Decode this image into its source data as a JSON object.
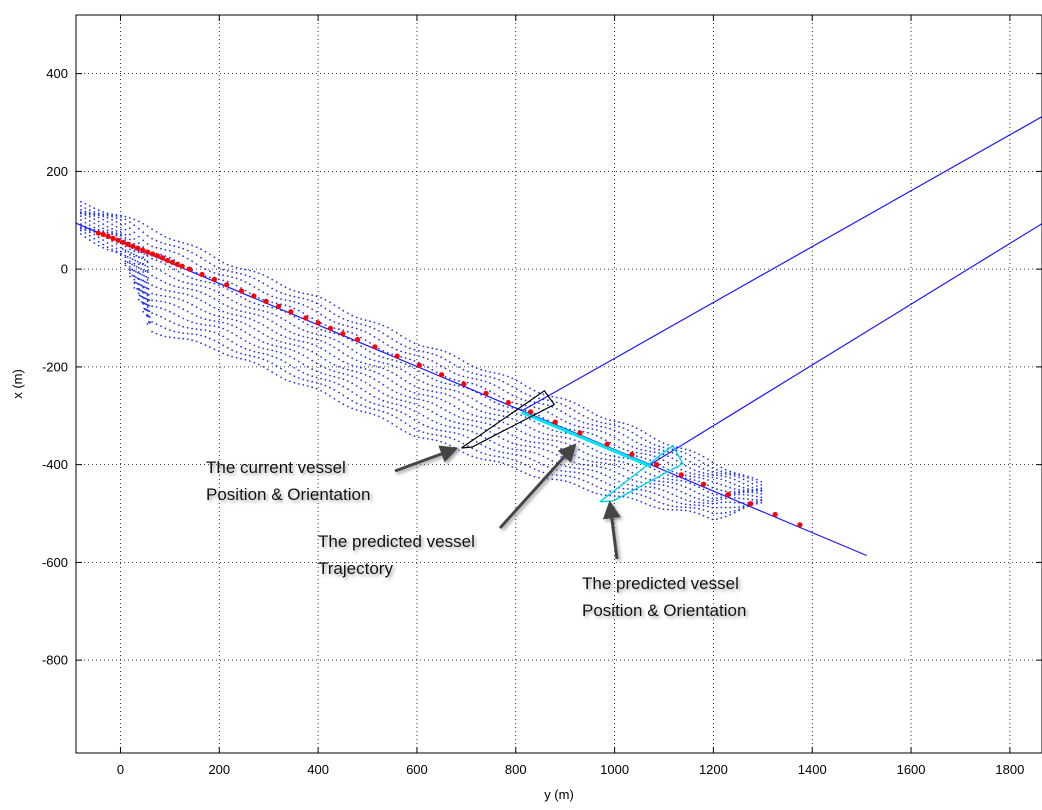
{
  "chart_data": {
    "type": "scatter",
    "title": "",
    "xlabel": "y (m)",
    "ylabel": "x (m)",
    "xlim": [
      -90,
      1865
    ],
    "ylim": [
      -990,
      520
    ],
    "xticks": [
      0,
      200,
      400,
      600,
      800,
      1000,
      1200,
      1400,
      1600,
      1800
    ],
    "yticks": [
      400,
      200,
      0,
      -200,
      -400,
      -600,
      -800
    ],
    "grid": true,
    "colors": {
      "trajectory": "#1a1aff",
      "cloud": "#2233ee",
      "markers": "#ff0000",
      "predicted": "#00e5ee",
      "current_vessel": "#000000",
      "predicted_vessel": "#00d6e0",
      "arrow": "#444444"
    },
    "series": [
      {
        "kind": "line",
        "x": [
          -90,
          1510
        ],
        "y": [
          94,
          -586
        ]
      },
      {
        "kind": "line",
        "x": [
          812,
          1865
        ],
        "y": [
          -290,
          312
        ]
      },
      {
        "kind": "line",
        "x": [
          1072,
          1865
        ],
        "y": [
          -400,
          93
        ]
      },
      {
        "kind": "markers",
        "x": [
          -45,
          -35,
          -25,
          -15,
          -5,
          5,
          15,
          25,
          35,
          45,
          55,
          65,
          75,
          85,
          95,
          105,
          115,
          125,
          140,
          165,
          190,
          215,
          245,
          270,
          295,
          320,
          345,
          375,
          400,
          425,
          450,
          480,
          515,
          560,
          605,
          650,
          695,
          740,
          785,
          830,
          880,
          930,
          985,
          1035,
          1085,
          1135,
          1180,
          1230,
          1275,
          1325,
          1375
        ],
        "y": [
          74,
          71,
          67,
          63,
          59,
          55,
          51,
          47,
          43,
          39,
          35,
          31,
          27,
          23,
          18,
          14,
          10,
          6,
          0,
          -11,
          -21,
          -32,
          -45,
          -55,
          -66,
          -76,
          -87,
          -100,
          -110,
          -121,
          -132,
          -144,
          -159,
          -178,
          -197,
          -216,
          -235,
          -254,
          -273,
          -292,
          -313,
          -335,
          -358,
          -379,
          -400,
          -421,
          -440,
          -461,
          -480,
          -502,
          -523
        ]
      },
      {
        "kind": "predicted_trajectory",
        "x": [
          812,
          1072
        ],
        "y": [
          -293,
          -403
        ]
      }
    ],
    "cloud_bounds": {
      "top": {
        "x": [
          -80,
          0,
          80,
          200,
          400,
          600,
          800,
          1000,
          1200,
          1300
        ],
        "y": [
          135,
          110,
          75,
          20,
          -60,
          -150,
          -230,
          -310,
          -395,
          -440
        ]
      },
      "bottom": {
        "x": [
          -80,
          0,
          60,
          200,
          400,
          600,
          800,
          1000,
          1200,
          1300
        ],
        "y": [
          70,
          30,
          -125,
          -165,
          -250,
          -340,
          -410,
          -465,
          -510,
          -480
        ]
      }
    },
    "vessels": {
      "current": {
        "x": [
          690,
          712,
          878,
          858,
          690
        ],
        "y": [
          -366,
          -364,
          -277,
          -249,
          -366
        ]
      },
      "predicted": {
        "x": [
          970,
          998,
          1138,
          1118,
          970
        ],
        "y": [
          -476,
          -474,
          -398,
          -361,
          -476
        ]
      }
    },
    "annotations": [
      {
        "id": "current",
        "lines": [
          "The current vessel",
          "Position & Orientation"
        ]
      },
      {
        "id": "predicted-trajectory",
        "lines": [
          "The predicted vessel",
          "Trajectory"
        ]
      },
      {
        "id": "predicted-position",
        "lines": [
          "The predicted vessel",
          "Position & Orientation"
        ]
      }
    ]
  }
}
